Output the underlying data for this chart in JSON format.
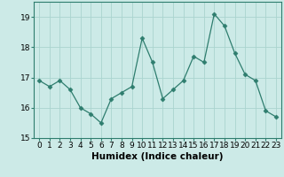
{
  "x": [
    0,
    1,
    2,
    3,
    4,
    5,
    6,
    7,
    8,
    9,
    10,
    11,
    12,
    13,
    14,
    15,
    16,
    17,
    18,
    19,
    20,
    21,
    22,
    23
  ],
  "y": [
    16.9,
    16.7,
    16.9,
    16.6,
    16.0,
    15.8,
    15.5,
    16.3,
    16.5,
    16.7,
    18.3,
    17.5,
    16.3,
    16.6,
    16.9,
    17.7,
    17.5,
    19.1,
    18.7,
    17.8,
    17.1,
    16.9,
    15.9,
    15.7
  ],
  "line_color": "#2e7d6e",
  "marker": "D",
  "marker_size": 2.5,
  "background_color": "#cceae7",
  "grid_color": "#aad4cf",
  "xlabel": "Humidex (Indice chaleur)",
  "ylim": [
    15,
    19.5
  ],
  "xlim": [
    -0.5,
    23.5
  ],
  "yticks": [
    15,
    16,
    17,
    18,
    19
  ],
  "xticks": [
    0,
    1,
    2,
    3,
    4,
    5,
    6,
    7,
    8,
    9,
    10,
    11,
    12,
    13,
    14,
    15,
    16,
    17,
    18,
    19,
    20,
    21,
    22,
    23
  ],
  "tick_fontsize": 6.5,
  "xlabel_fontsize": 7.5,
  "spine_color": "#2e7d6e",
  "linewidth": 0.9
}
